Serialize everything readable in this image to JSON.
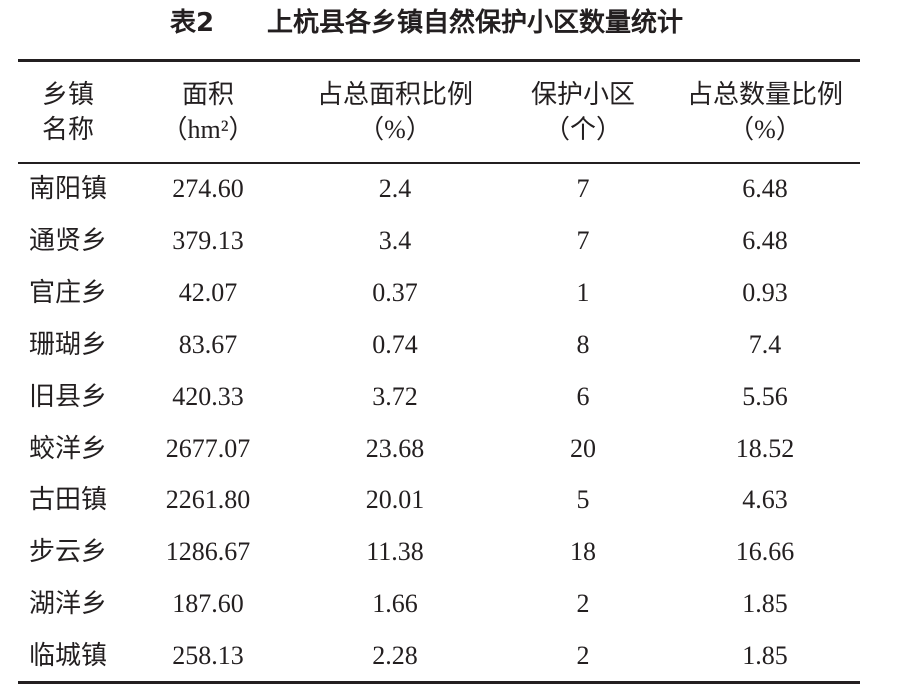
{
  "title": {
    "label": "表2",
    "text": "上杭县各乡镇自然保护小区数量统计"
  },
  "table": {
    "header": [
      [
        "乡镇",
        "名称"
      ],
      [
        "面积",
        "（hm²）"
      ],
      [
        "占总面积比例",
        "（%）"
      ],
      [
        "保护小区",
        "（个）"
      ],
      [
        "占总数量比例",
        "（%）"
      ]
    ],
    "rows": [
      [
        "南阳镇",
        "274.60",
        "2.4",
        "7",
        "6.48"
      ],
      [
        "通贤乡",
        "379.13",
        "3.4",
        "7",
        "6.48"
      ],
      [
        "官庄乡",
        "42.07",
        "0.37",
        "1",
        "0.93"
      ],
      [
        "珊瑚乡",
        "83.67",
        "0.74",
        "8",
        "7.4"
      ],
      [
        "旧县乡",
        "420.33",
        "3.72",
        "6",
        "5.56"
      ],
      [
        "蛟洋乡",
        "2677.07",
        "23.68",
        "20",
        "18.52"
      ],
      [
        "古田镇",
        "2261.80",
        "20.01",
        "5",
        "4.63"
      ],
      [
        "步云乡",
        "1286.67",
        "11.38",
        "18",
        "16.66"
      ],
      [
        "湖洋乡",
        "187.60",
        "1.66",
        "2",
        "1.85"
      ],
      [
        "临城镇",
        "258.13",
        "2.28",
        "2",
        "1.85"
      ]
    ]
  }
}
